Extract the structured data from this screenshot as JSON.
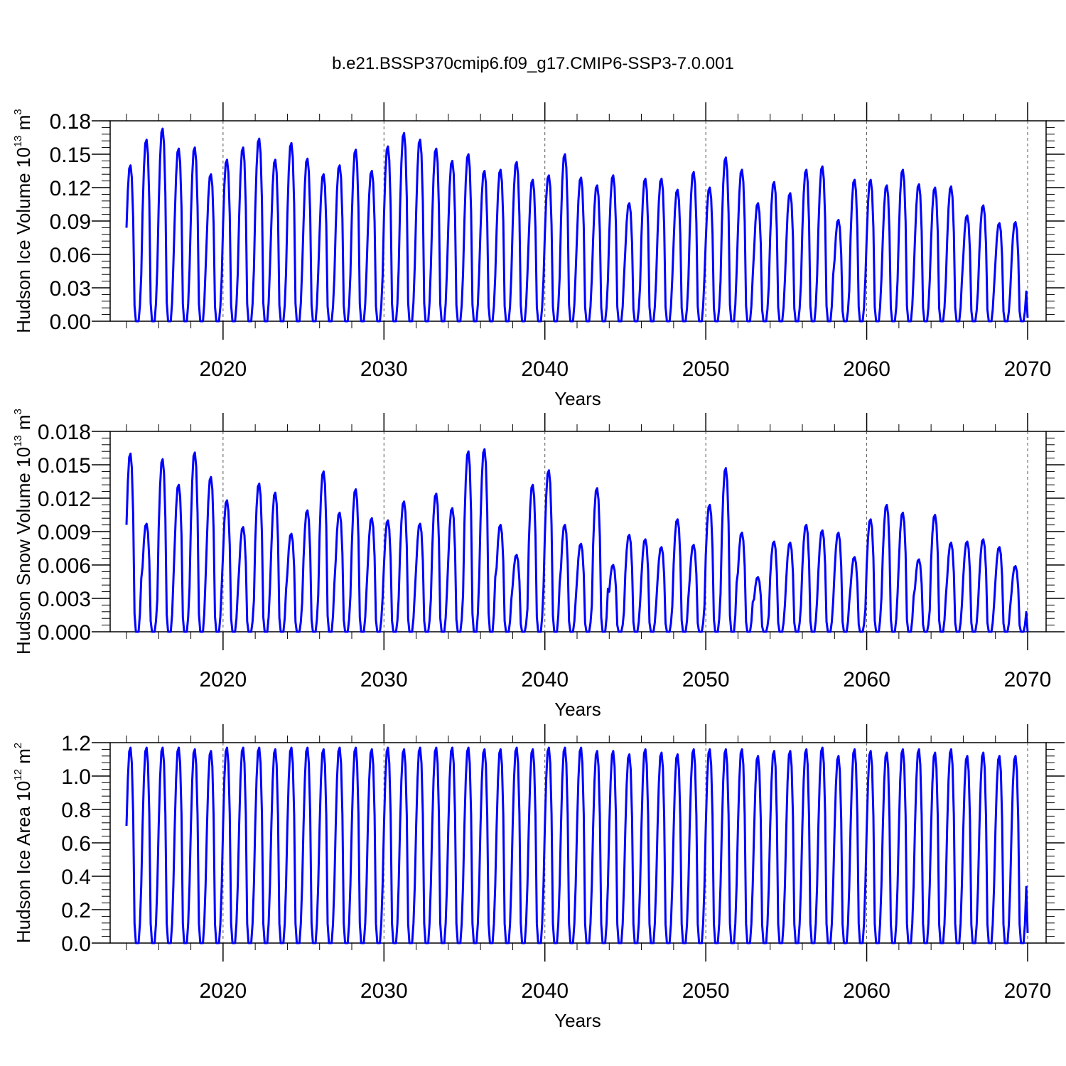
{
  "title": "b.e21.BSSP370cmip6.f09_g17.CMIP6-SSP3-7.0.001",
  "colors": {
    "series": "#0000ff",
    "axis": "#000000",
    "grid": "#555555"
  },
  "chart_data": [
    {
      "type": "line",
      "xlabel": "Years",
      "ylabel": {
        "name": "Hudson Ice Volume 10",
        "exp": "13",
        "unit": "m",
        "unit_exp": "3"
      },
      "xlim": [
        2014,
        2070
      ],
      "ylim": [
        0,
        0.18
      ],
      "xticks": [
        "2020",
        "2030",
        "2040",
        "2050",
        "2060",
        "2070"
      ],
      "yticks": [
        "0.00",
        "0.03",
        "0.06",
        "0.09",
        "0.12",
        "0.15",
        "0.18"
      ],
      "grid": "vertical dashed at labeled years",
      "series": [
        {
          "start_year": 2014,
          "annual_peaks": [
            0.14,
            0.163,
            0.173,
            0.155,
            0.156,
            0.132,
            0.145,
            0.156,
            0.164,
            0.145,
            0.16,
            0.146,
            0.132,
            0.14,
            0.154,
            0.135,
            0.157,
            0.169,
            0.163,
            0.155,
            0.144,
            0.15,
            0.135,
            0.136,
            0.143,
            0.127,
            0.131,
            0.15,
            0.129,
            0.122,
            0.131,
            0.106,
            0.128,
            0.128,
            0.118,
            0.134,
            0.12,
            0.147,
            0.136,
            0.106,
            0.125,
            0.115,
            0.136,
            0.139,
            0.091,
            0.127,
            0.127,
            0.122,
            0.136,
            0.123,
            0.12,
            0.121,
            0.095,
            0.104,
            0.088,
            0.089
          ],
          "end_value": 0.003
        }
      ]
    },
    {
      "type": "line",
      "xlabel": "Years",
      "ylabel": {
        "name": "Hudson Snow Volume 10",
        "exp": "13",
        "unit": "m",
        "unit_exp": "3"
      },
      "xlim": [
        2014,
        2070
      ],
      "ylim": [
        0,
        0.018
      ],
      "xticks": [
        "2020",
        "2030",
        "2040",
        "2050",
        "2060",
        "2070"
      ],
      "yticks": [
        "0.000",
        "0.003",
        "0.006",
        "0.009",
        "0.012",
        "0.015",
        "0.018"
      ],
      "grid": "vertical dashed at labeled years",
      "series": [
        {
          "start_year": 2014,
          "annual_peaks": [
            0.016,
            0.0097,
            0.0155,
            0.0132,
            0.0161,
            0.0139,
            0.0118,
            0.0094,
            0.0133,
            0.0125,
            0.0088,
            0.0109,
            0.0144,
            0.0107,
            0.0128,
            0.0102,
            0.01,
            0.0117,
            0.0097,
            0.0124,
            0.0111,
            0.0162,
            0.0164,
            0.0096,
            0.0069,
            0.0132,
            0.0145,
            0.0096,
            0.0079,
            0.0129,
            0.006,
            0.0087,
            0.0083,
            0.0076,
            0.0101,
            0.0078,
            0.0114,
            0.0147,
            0.0089,
            0.0049,
            0.0081,
            0.008,
            0.0096,
            0.0091,
            0.0089,
            0.0067,
            0.0101,
            0.0114,
            0.0107,
            0.0065,
            0.0105,
            0.008,
            0.0081,
            0.0083,
            0.0076,
            0.0059
          ],
          "end_value": 0.0
        }
      ]
    },
    {
      "type": "line",
      "xlabel": "Years",
      "ylabel": {
        "name": "Hudson Ice Area 10",
        "exp": "12",
        "unit": "m",
        "unit_exp": "2"
      },
      "xlim": [
        2014,
        2070
      ],
      "ylim": [
        0,
        1.2
      ],
      "xticks": [
        "2020",
        "2030",
        "2040",
        "2050",
        "2060",
        "2070"
      ],
      "yticks": [
        "0.0",
        "0.2",
        "0.4",
        "0.6",
        "0.8",
        "1.0",
        "1.2"
      ],
      "grid": "vertical dashed at labeled years",
      "series": [
        {
          "start_year": 2014,
          "annual_peaks": [
            1.17,
            1.17,
            1.17,
            1.17,
            1.16,
            1.15,
            1.17,
            1.17,
            1.17,
            1.16,
            1.17,
            1.17,
            1.16,
            1.17,
            1.17,
            1.16,
            1.17,
            1.16,
            1.17,
            1.17,
            1.17,
            1.17,
            1.16,
            1.16,
            1.17,
            1.16,
            1.17,
            1.17,
            1.17,
            1.15,
            1.15,
            1.13,
            1.16,
            1.14,
            1.13,
            1.16,
            1.16,
            1.16,
            1.16,
            1.12,
            1.15,
            1.15,
            1.16,
            1.17,
            1.12,
            1.16,
            1.15,
            1.14,
            1.16,
            1.16,
            1.14,
            1.16,
            1.12,
            1.14,
            1.12,
            1.12
          ],
          "end_value": 0.06
        }
      ]
    }
  ]
}
